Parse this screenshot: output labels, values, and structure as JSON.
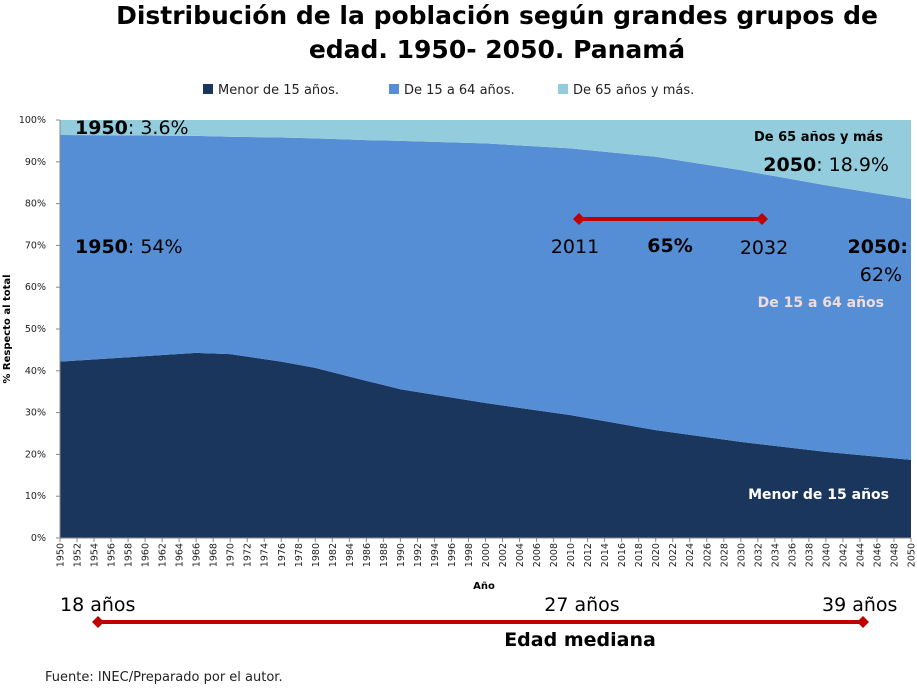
{
  "chart_data": {
    "type": "area",
    "stacked": "percent",
    "title": [
      "Distribución de la población según grandes grupos de",
      "edad. 1950- 2050. Panamá"
    ],
    "xlabel": "Año",
    "ylabel": "% Respecto al total",
    "xlim": [
      1950,
      2050
    ],
    "ylim": [
      0,
      100
    ],
    "y_ticks": [
      "0%",
      "10%",
      "20%",
      "30%",
      "40%",
      "50%",
      "60%",
      "70%",
      "80%",
      "90%",
      "100%"
    ],
    "x_tick_step": 2,
    "legend_position": "top",
    "grid": false,
    "x": [
      1950,
      1960,
      1966,
      1970,
      1976,
      1980,
      1986,
      1990,
      2000,
      2010,
      2020,
      2030,
      2040,
      2050
    ],
    "series": [
      {
        "name": "Menor de 15 años.",
        "color": "#1b365d",
        "values": [
          42.2,
          43.5,
          44.3,
          44.0,
          42.2,
          40.7,
          37.6,
          35.6,
          32.3,
          29.4,
          25.8,
          23.0,
          20.6,
          18.7
        ]
      },
      {
        "name": "De 15 a 64 años.",
        "color": "#558ed5",
        "values": [
          54.2,
          52.8,
          51.9,
          52.0,
          53.6,
          54.9,
          57.6,
          59.4,
          62.1,
          63.8,
          65.4,
          65.0,
          63.8,
          62.4
        ]
      },
      {
        "name": "De 65 años y más.",
        "color": "#93cddd",
        "values": [
          3.6,
          3.7,
          3.8,
          4.0,
          4.2,
          4.4,
          4.8,
          5.0,
          5.6,
          6.8,
          8.8,
          12.0,
          15.6,
          18.9
        ]
      }
    ],
    "annotations": {
      "a1950_65_bold": "1950",
      "a1950_65_val": ": 3.6%",
      "a1950_1564_bold": "1950",
      "a1950_1564_val": ": 54%",
      "label_65": "De 65 años y más",
      "a2050_65_bold": "2050",
      "a2050_65_val": ": 18.9%",
      "window_start": "2011",
      "window_value": "65%",
      "window_end": "2032",
      "a2050_1564_bold": "2050:",
      "a2050_1564_val": "62%",
      "label_1564": "De 15 a 64 años",
      "label_menor": "Menor de 15 años"
    },
    "median_age": {
      "title": "Edad mediana",
      "labels": [
        "18 años",
        "27 años",
        "39 años"
      ]
    },
    "accent_color": "#c00000"
  },
  "source": "Fuente: INEC/Preparado por el autor."
}
